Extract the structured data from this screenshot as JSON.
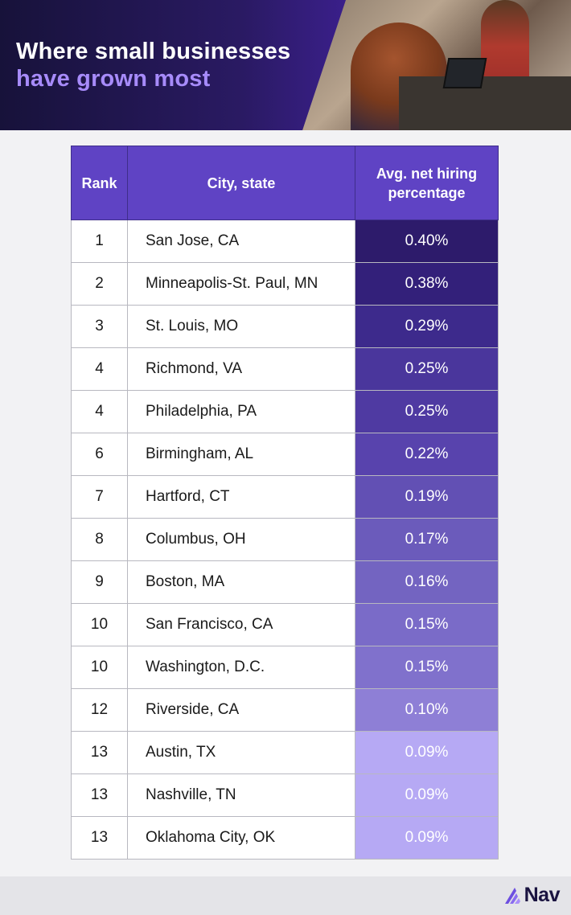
{
  "header": {
    "title_line1": "Where small businesses",
    "title_line2": "have grown most"
  },
  "table": {
    "headers": {
      "rank": "Rank",
      "city": "City, state",
      "value": "Avg. net hiring percentage"
    },
    "rows": [
      {
        "rank": "1",
        "city": "San Jose, CA",
        "value": "0.40%",
        "color": "#2d1b6b"
      },
      {
        "rank": "2",
        "city": "Minneapolis-St. Paul, MN",
        "value": "0.38%",
        "color": "#33207a"
      },
      {
        "rank": "3",
        "city": "St. Louis, MO",
        "value": "0.29%",
        "color": "#3d2a8c"
      },
      {
        "rank": "4",
        "city": "Richmond, VA",
        "value": "0.25%",
        "color": "#4a369c"
      },
      {
        "rank": "4",
        "city": "Philadelphia, PA",
        "value": "0.25%",
        "color": "#4f3aa2"
      },
      {
        "rank": "6",
        "city": "Birmingham, AL",
        "value": "0.22%",
        "color": "#5843ad"
      },
      {
        "rank": "7",
        "city": "Hartford, CT",
        "value": "0.19%",
        "color": "#6250b4"
      },
      {
        "rank": "8",
        "city": "Columbus, OH",
        "value": "0.17%",
        "color": "#6b5bbb"
      },
      {
        "rank": "9",
        "city": "Boston, MA",
        "value": "0.16%",
        "color": "#7364c1"
      },
      {
        "rank": "10",
        "city": "San Francisco, CA",
        "value": "0.15%",
        "color": "#7a6bc8"
      },
      {
        "rank": "10",
        "city": "Washington, D.C.",
        "value": "0.15%",
        "color": "#8071cc"
      },
      {
        "rank": "12",
        "city": "Riverside, CA",
        "value": "0.10%",
        "color": "#8e7fd6"
      },
      {
        "rank": "13",
        "city": "Austin, TX",
        "value": "0.09%",
        "color": "#b6a9f4"
      },
      {
        "rank": "13",
        "city": "Nashville, TN",
        "value": "0.09%",
        "color": "#b6a9f4"
      },
      {
        "rank": "13",
        "city": "Oklahoma City, OK",
        "value": "0.09%",
        "color": "#b6a9f4"
      }
    ]
  },
  "footer": {
    "logo_text": "Nav",
    "logo_icon": "nav-logo-icon"
  }
}
